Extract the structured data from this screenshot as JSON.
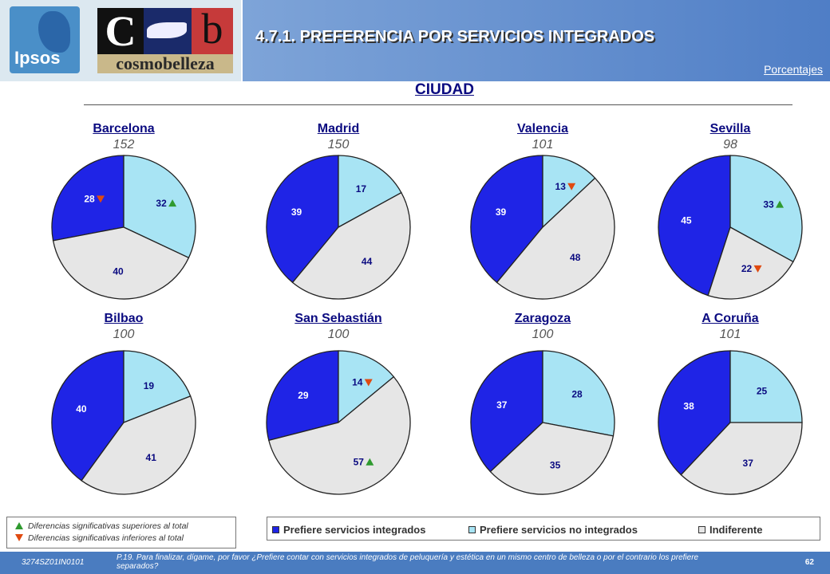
{
  "header": {
    "ipsos_logo_text": "Ipsos",
    "brand_logo_letters": "C b",
    "brand_logo_word": "cosmobelleza",
    "title": "4.7.1.  PREFERENCIA POR SERVICIOS INTEGRADOS",
    "units": "Porcentajes"
  },
  "section_title": "CIUDAD",
  "colors": {
    "integrados": "#1f24e6",
    "no_integrados": "#a8e4f4",
    "indiferente": "#e6e6e6",
    "sig_up": "#2f9a2f",
    "sig_down": "#e04a10"
  },
  "chart_data": {
    "type": "pie",
    "series_names": [
      "Prefiere servicios integrados",
      "Prefiere servicios no integrados",
      "Indiferente"
    ],
    "pies": [
      {
        "name": "Barcelona",
        "n": "152",
        "values": [
          28,
          32,
          40
        ],
        "flags": [
          "down",
          "up",
          ""
        ]
      },
      {
        "name": "Madrid",
        "n": "150",
        "values": [
          39,
          17,
          44
        ],
        "flags": [
          "",
          "",
          ""
        ]
      },
      {
        "name": "Valencia",
        "n": "101",
        "values": [
          39,
          13,
          48
        ],
        "flags": [
          "",
          "down",
          ""
        ]
      },
      {
        "name": "Sevilla",
        "n": "98",
        "values": [
          45,
          33,
          22
        ],
        "flags": [
          "",
          "up",
          "down"
        ]
      },
      {
        "name": "Bilbao",
        "n": "100",
        "values": [
          40,
          19,
          41
        ],
        "flags": [
          "",
          "",
          ""
        ]
      },
      {
        "name": "San Sebastián",
        "n": "100",
        "values": [
          29,
          14,
          57
        ],
        "flags": [
          "",
          "down",
          "up"
        ]
      },
      {
        "name": "Zaragoza",
        "n": "100",
        "values": [
          37,
          28,
          35
        ],
        "flags": [
          "",
          "",
          ""
        ]
      },
      {
        "name": "A Coruña",
        "n": "101",
        "values": [
          38,
          25,
          37
        ],
        "flags": [
          "",
          "",
          ""
        ]
      }
    ]
  },
  "significance_legend": {
    "up_label": "Diferencias significativas superiores al total",
    "down_label": "Diferencias significativas inferiores al total"
  },
  "series_legend": {
    "integrados": "Prefiere servicios integrados",
    "no_integrados": "Prefiere servicios no integrados",
    "indiferente": "Indiferente"
  },
  "footer": {
    "code": "3274SZ01IN0101",
    "question": "P.19. Para finalizar, dígame, por favor ¿Prefiere contar con servicios integrados de peluquería y estética en un mismo centro de belleza o por el contrario los prefiere separados?",
    "page": "62"
  }
}
